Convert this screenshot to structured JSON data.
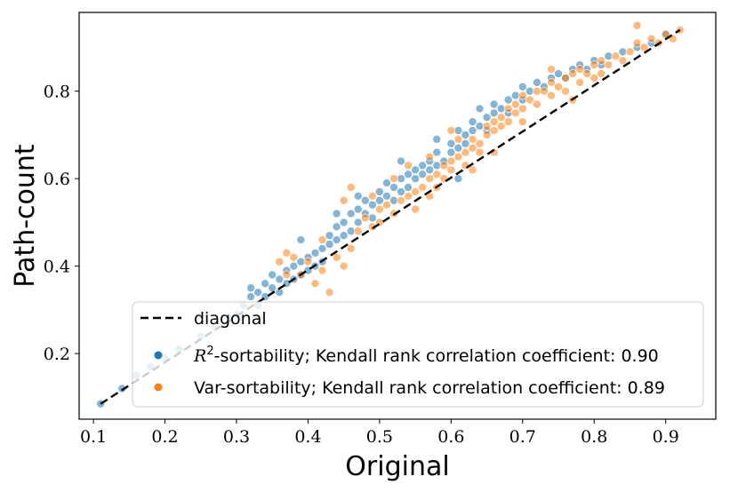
{
  "chart_data": {
    "type": "scatter",
    "title": "",
    "xlabel": "Original",
    "ylabel": "Path-count",
    "xlim": [
      0.08,
      0.97
    ],
    "ylim": [
      0.05,
      0.98
    ],
    "xticks": [
      0.1,
      0.2,
      0.3,
      0.4,
      0.5,
      0.6,
      0.7,
      0.8,
      0.9
    ],
    "yticks": [
      0.2,
      0.4,
      0.6,
      0.8
    ],
    "xtick_labels": [
      "0.1",
      "0.2",
      "0.3",
      "0.4",
      "0.5",
      "0.6",
      "0.7",
      "0.8",
      "0.9"
    ],
    "ytick_labels": [
      "0.2",
      "0.4",
      "0.6",
      "0.8"
    ],
    "grid": false,
    "legend_position": "lower-right",
    "diagonal": {
      "name": "diagonal",
      "x": [
        0.11,
        0.92
      ],
      "y": [
        0.085,
        0.94
      ],
      "color": "#000000",
      "style": "dashed"
    },
    "series": [
      {
        "name": "R2-sortability; Kendall rank correlation coefficient: 0.90",
        "legend_math": "R",
        "legend_sup": "2",
        "legend_rest": "-sortability; Kendall rank correlation coefficient: 0.90",
        "color": "#1f77b4",
        "points": [
          [
            0.11,
            0.085
          ],
          [
            0.14,
            0.12
          ],
          [
            0.16,
            0.15
          ],
          [
            0.18,
            0.17
          ],
          [
            0.2,
            0.19
          ],
          [
            0.22,
            0.21
          ],
          [
            0.25,
            0.24
          ],
          [
            0.27,
            0.26
          ],
          [
            0.29,
            0.28
          ],
          [
            0.3,
            0.29
          ],
          [
            0.31,
            0.31
          ],
          [
            0.32,
            0.33
          ],
          [
            0.32,
            0.35
          ],
          [
            0.33,
            0.31
          ],
          [
            0.33,
            0.34
          ],
          [
            0.34,
            0.33
          ],
          [
            0.34,
            0.36
          ],
          [
            0.35,
            0.35
          ],
          [
            0.35,
            0.38
          ],
          [
            0.36,
            0.37
          ],
          [
            0.36,
            0.34
          ],
          [
            0.37,
            0.39
          ],
          [
            0.37,
            0.36
          ],
          [
            0.38,
            0.4
          ],
          [
            0.38,
            0.37
          ],
          [
            0.39,
            0.41
          ],
          [
            0.39,
            0.38
          ],
          [
            0.4,
            0.42
          ],
          [
            0.4,
            0.39
          ],
          [
            0.41,
            0.43
          ],
          [
            0.41,
            0.4
          ],
          [
            0.42,
            0.44
          ],
          [
            0.42,
            0.41
          ],
          [
            0.43,
            0.45
          ],
          [
            0.43,
            0.47
          ],
          [
            0.44,
            0.46
          ],
          [
            0.44,
            0.49
          ],
          [
            0.45,
            0.47
          ],
          [
            0.45,
            0.5
          ],
          [
            0.46,
            0.48
          ],
          [
            0.46,
            0.52
          ],
          [
            0.47,
            0.5
          ],
          [
            0.47,
            0.53
          ],
          [
            0.48,
            0.52
          ],
          [
            0.48,
            0.55
          ],
          [
            0.49,
            0.54
          ],
          [
            0.49,
            0.51
          ],
          [
            0.5,
            0.55
          ],
          [
            0.5,
            0.57
          ],
          [
            0.51,
            0.56
          ],
          [
            0.51,
            0.59
          ],
          [
            0.52,
            0.58
          ],
          [
            0.52,
            0.55
          ],
          [
            0.53,
            0.6
          ],
          [
            0.53,
            0.57
          ],
          [
            0.54,
            0.61
          ],
          [
            0.54,
            0.58
          ],
          [
            0.55,
            0.62
          ],
          [
            0.55,
            0.6
          ],
          [
            0.56,
            0.63
          ],
          [
            0.56,
            0.61
          ],
          [
            0.57,
            0.64
          ],
          [
            0.57,
            0.62
          ],
          [
            0.58,
            0.66
          ],
          [
            0.58,
            0.63
          ],
          [
            0.59,
            0.64
          ],
          [
            0.6,
            0.66
          ],
          [
            0.6,
            0.68
          ],
          [
            0.61,
            0.67
          ],
          [
            0.61,
            0.71
          ],
          [
            0.62,
            0.7
          ],
          [
            0.62,
            0.68
          ],
          [
            0.63,
            0.71
          ],
          [
            0.63,
            0.73
          ],
          [
            0.64,
            0.72
          ],
          [
            0.65,
            0.74
          ],
          [
            0.65,
            0.71
          ],
          [
            0.66,
            0.75
          ],
          [
            0.66,
            0.77
          ],
          [
            0.67,
            0.76
          ],
          [
            0.68,
            0.78
          ],
          [
            0.68,
            0.75
          ],
          [
            0.69,
            0.79
          ],
          [
            0.7,
            0.78
          ],
          [
            0.7,
            0.81
          ],
          [
            0.71,
            0.8
          ],
          [
            0.72,
            0.82
          ],
          [
            0.73,
            0.81
          ],
          [
            0.74,
            0.83
          ],
          [
            0.75,
            0.84
          ],
          [
            0.76,
            0.83
          ],
          [
            0.77,
            0.85
          ],
          [
            0.78,
            0.86
          ],
          [
            0.79,
            0.85
          ],
          [
            0.8,
            0.87
          ],
          [
            0.81,
            0.86
          ],
          [
            0.82,
            0.88
          ],
          [
            0.84,
            0.89
          ],
          [
            0.86,
            0.9
          ],
          [
            0.88,
            0.91
          ],
          [
            0.9,
            0.93
          ],
          [
            0.61,
            0.6
          ],
          [
            0.44,
            0.52
          ],
          [
            0.39,
            0.46
          ],
          [
            0.58,
            0.69
          ],
          [
            0.64,
            0.76
          ],
          [
            0.47,
            0.56
          ],
          [
            0.53,
            0.64
          ]
        ]
      },
      {
        "name": "Var-sortability; Kendall rank correlation coefficient: 0.89",
        "legend_math": "",
        "legend_sup": "",
        "legend_rest": "Var-sortability; Kendall rank correlation coefficient: 0.89",
        "color": "#ff7f0e",
        "points": [
          [
            0.36,
            0.41
          ],
          [
            0.37,
            0.43
          ],
          [
            0.38,
            0.42
          ],
          [
            0.39,
            0.38
          ],
          [
            0.4,
            0.41
          ],
          [
            0.41,
            0.36
          ],
          [
            0.42,
            0.39
          ],
          [
            0.43,
            0.34
          ],
          [
            0.44,
            0.42
          ],
          [
            0.45,
            0.4
          ],
          [
            0.45,
            0.55
          ],
          [
            0.46,
            0.44
          ],
          [
            0.46,
            0.58
          ],
          [
            0.47,
            0.48
          ],
          [
            0.48,
            0.51
          ],
          [
            0.49,
            0.49
          ],
          [
            0.5,
            0.53
          ],
          [
            0.5,
            0.5
          ],
          [
            0.51,
            0.54
          ],
          [
            0.52,
            0.52
          ],
          [
            0.52,
            0.6
          ],
          [
            0.53,
            0.55
          ],
          [
            0.54,
            0.56
          ],
          [
            0.55,
            0.57
          ],
          [
            0.55,
            0.53
          ],
          [
            0.56,
            0.58
          ],
          [
            0.57,
            0.6
          ],
          [
            0.57,
            0.56
          ],
          [
            0.58,
            0.61
          ],
          [
            0.58,
            0.58
          ],
          [
            0.59,
            0.63
          ],
          [
            0.59,
            0.6
          ],
          [
            0.6,
            0.64
          ],
          [
            0.6,
            0.62
          ],
          [
            0.61,
            0.65
          ],
          [
            0.61,
            0.69
          ],
          [
            0.62,
            0.66
          ],
          [
            0.62,
            0.63
          ],
          [
            0.63,
            0.67
          ],
          [
            0.63,
            0.69
          ],
          [
            0.64,
            0.68
          ],
          [
            0.64,
            0.66
          ],
          [
            0.65,
            0.7
          ],
          [
            0.65,
            0.72
          ],
          [
            0.66,
            0.71
          ],
          [
            0.66,
            0.73
          ],
          [
            0.67,
            0.72
          ],
          [
            0.67,
            0.74
          ],
          [
            0.68,
            0.73
          ],
          [
            0.68,
            0.76
          ],
          [
            0.69,
            0.75
          ],
          [
            0.69,
            0.77
          ],
          [
            0.7,
            0.76
          ],
          [
            0.7,
            0.79
          ],
          [
            0.71,
            0.78
          ],
          [
            0.72,
            0.8
          ],
          [
            0.72,
            0.77
          ],
          [
            0.73,
            0.8
          ],
          [
            0.74,
            0.82
          ],
          [
            0.74,
            0.79
          ],
          [
            0.75,
            0.81
          ],
          [
            0.76,
            0.83
          ],
          [
            0.76,
            0.8
          ],
          [
            0.77,
            0.84
          ],
          [
            0.78,
            0.82
          ],
          [
            0.78,
            0.85
          ],
          [
            0.79,
            0.84
          ],
          [
            0.8,
            0.86
          ],
          [
            0.8,
            0.83
          ],
          [
            0.81,
            0.87
          ],
          [
            0.82,
            0.86
          ],
          [
            0.83,
            0.88
          ],
          [
            0.84,
            0.87
          ],
          [
            0.85,
            0.89
          ],
          [
            0.86,
            0.91
          ],
          [
            0.87,
            0.9
          ],
          [
            0.88,
            0.92
          ],
          [
            0.89,
            0.91
          ],
          [
            0.9,
            0.93
          ],
          [
            0.91,
            0.92
          ],
          [
            0.92,
            0.94
          ],
          [
            0.86,
            0.95
          ],
          [
            0.54,
            0.63
          ],
          [
            0.6,
            0.71
          ],
          [
            0.66,
            0.66
          ],
          [
            0.7,
            0.73
          ],
          [
            0.49,
            0.56
          ],
          [
            0.42,
            0.46
          ],
          [
            0.37,
            0.38
          ],
          [
            0.57,
            0.65
          ],
          [
            0.63,
            0.62
          ],
          [
            0.74,
            0.85
          ],
          [
            0.81,
            0.84
          ],
          [
            0.77,
            0.78
          ]
        ]
      }
    ]
  }
}
